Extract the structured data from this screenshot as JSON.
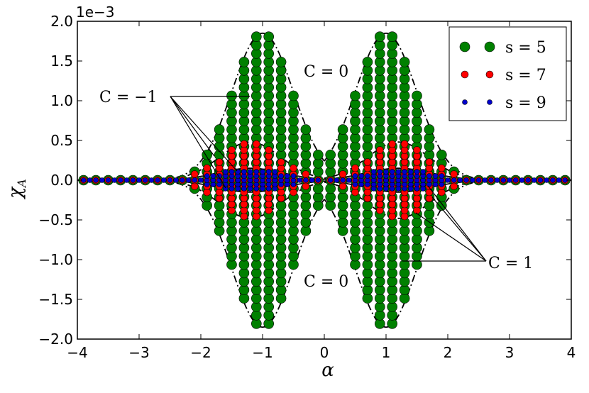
{
  "chart_data": {
    "type": "scatter",
    "xlabel": "α",
    "ylabel": "χ",
    "ylabel_sub": "A",
    "offset_text": "1e−3",
    "xlim": [
      -4,
      4
    ],
    "ylim": [
      -2.0,
      2.0
    ],
    "x_ticks": [
      "−4",
      "−3",
      "−2",
      "−1",
      "0",
      "1",
      "2",
      "3",
      "4"
    ],
    "y_ticks": [
      "−2.0",
      "−1.5",
      "−1.0",
      "−0.5",
      "0.0",
      "0.5",
      "1.0",
      "1.5",
      "2.0"
    ],
    "x_tick_values": [
      -4,
      -3,
      -2,
      -1,
      0,
      1,
      2,
      3,
      4
    ],
    "y_tick_values": [
      -2.0,
      -1.5,
      -1.0,
      -0.5,
      0.0,
      0.5,
      1.0,
      1.5,
      2.0
    ],
    "grid": false,
    "legend_position": "top-right",
    "series": [
      {
        "name": "s = 5",
        "color": "#008000",
        "marker": "large circle",
        "envelope_amplitude": 1.85,
        "envelope_center": 1.0,
        "envelope_width": 0.7,
        "lobes": "dash-dot",
        "x_step": 0.1
      },
      {
        "name": "s = 7",
        "color": "#ff0000",
        "marker": "medium circle",
        "envelope_amplitude": 0.48,
        "envelope_center": 1.2,
        "envelope_width": 0.7,
        "lobes": "dashed",
        "x_step": 0.1
      },
      {
        "name": "s = 9",
        "color": "#0000cc",
        "marker": "small circle",
        "envelope_amplitude": 0.15,
        "envelope_center": 1.2,
        "envelope_width": 0.75,
        "lobes": "solid",
        "x_step": 0.05
      }
    ],
    "annotations": [
      {
        "text": "C = 0",
        "position": "upper-center"
      },
      {
        "text": "C = 0",
        "position": "lower-center"
      },
      {
        "text": "C = −1",
        "position": "upper-left"
      },
      {
        "text": "C = 1",
        "position": "lower-right"
      }
    ]
  }
}
